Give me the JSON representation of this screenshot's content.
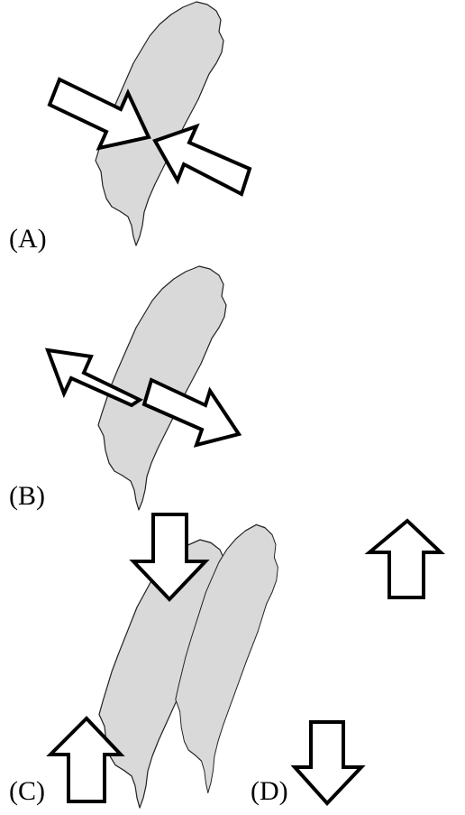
{
  "panels": [
    {
      "id": "A",
      "label": "(A)",
      "arrow_direction": "converging"
    },
    {
      "id": "B",
      "label": "(B)",
      "arrow_direction": "diverging"
    },
    {
      "id": "C",
      "label": "(C)",
      "arrow_direction": "converging"
    },
    {
      "id": "D",
      "label": "(D)",
      "arrow_direction": "diverging"
    }
  ],
  "colors": {
    "island_fill": "#d9d9d9",
    "island_stroke": "#222222",
    "arrow_fill": "#ffffff",
    "arrow_stroke": "#000000"
  }
}
